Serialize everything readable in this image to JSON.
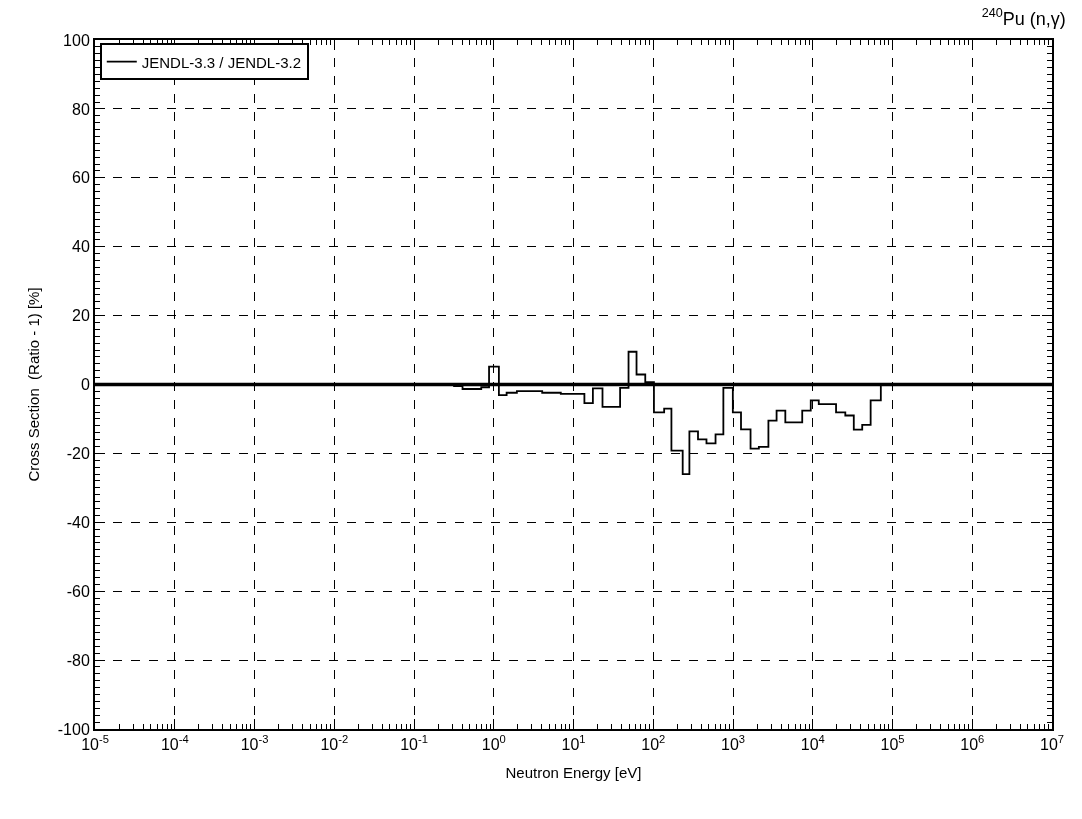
{
  "chart_data": {
    "type": "step",
    "title": "$^{240}$Pu (n,γ)",
    "xlabel": "Neutron Energy [eV]",
    "ylabel": "Cross Section  (Ratio - 1) [%]",
    "x": [
      1e-05,
      0.318,
      0.406,
      0.697,
      0.873,
      1.16,
      1.45,
      1.95,
      4.05,
      6.93,
      13.7,
      17.5,
      23.1,
      38.4,
      49.0,
      61.7,
      79.4,
      102,
      137,
      169,
      234,
      284,
      364,
      465,
      604,
      757,
      995,
      1260,
      1660,
      2110,
      2780,
      3520,
      4530,
      7380,
      9440,
      11900,
      19600,
      25600,
      32700,
      41700,
      53200,
      71400,
      10000000
    ],
    "series": [
      {
        "name": "JENDL-3.3 / JENDL-3.2",
        "color": "#000000",
        "values": [
          0,
          -0.5,
          -1.3,
          -0.8,
          5.2,
          -3.1,
          -2.4,
          -1.9,
          -2.4,
          -2.7,
          -5.4,
          -1.1,
          -6.5,
          -1,
          9.5,
          2.9,
          0.7,
          -8.1,
          -7,
          -19.2,
          -26,
          -13.6,
          -15.9,
          -17.1,
          -14.5,
          -1,
          -8.1,
          -13,
          -18.6,
          -18.1,
          -10.5,
          -7.6,
          -11,
          -7.6,
          -4.6,
          -5.7,
          -8.1,
          -9,
          -13.1,
          -11.7,
          -4.6,
          0,
          0
        ]
      }
    ],
    "log": "x",
    "xlim": [
      1e-05,
      10000000
    ],
    "xticks": [
      {
        "value": 1e-05,
        "label": "10$^{-5}$"
      },
      {
        "value": 0.0001,
        "label": "10$^{-4}$"
      },
      {
        "value": 0.001,
        "label": "10$^{-3}$"
      },
      {
        "value": 0.01,
        "label": "10$^{-2}$"
      },
      {
        "value": 0.1,
        "label": "10$^{-1}$"
      },
      {
        "value": 1,
        "label": "10$^{0}$"
      },
      {
        "value": 10,
        "label": "10$^{1}$"
      },
      {
        "value": 100,
        "label": "10$^{2}$"
      },
      {
        "value": 1000,
        "label": "10$^{3}$"
      },
      {
        "value": 10000,
        "label": "10$^{4}$"
      },
      {
        "value": 100000,
        "label": "10$^{5}$"
      },
      {
        "value": 1000000,
        "label": "10$^{6}$"
      },
      {
        "value": 10000000,
        "label": "10$^{7}$"
      }
    ],
    "ylim": [
      -100,
      100
    ],
    "yticks": [
      -100,
      -80,
      -60,
      -40,
      -20,
      0,
      20,
      40,
      60,
      80,
      100
    ],
    "ref_lines": [
      {
        "axis": "y",
        "value": 0,
        "label": null
      }
    ],
    "grid": true,
    "legend": "top left",
    "marker": "none",
    "line_style": "solid"
  }
}
